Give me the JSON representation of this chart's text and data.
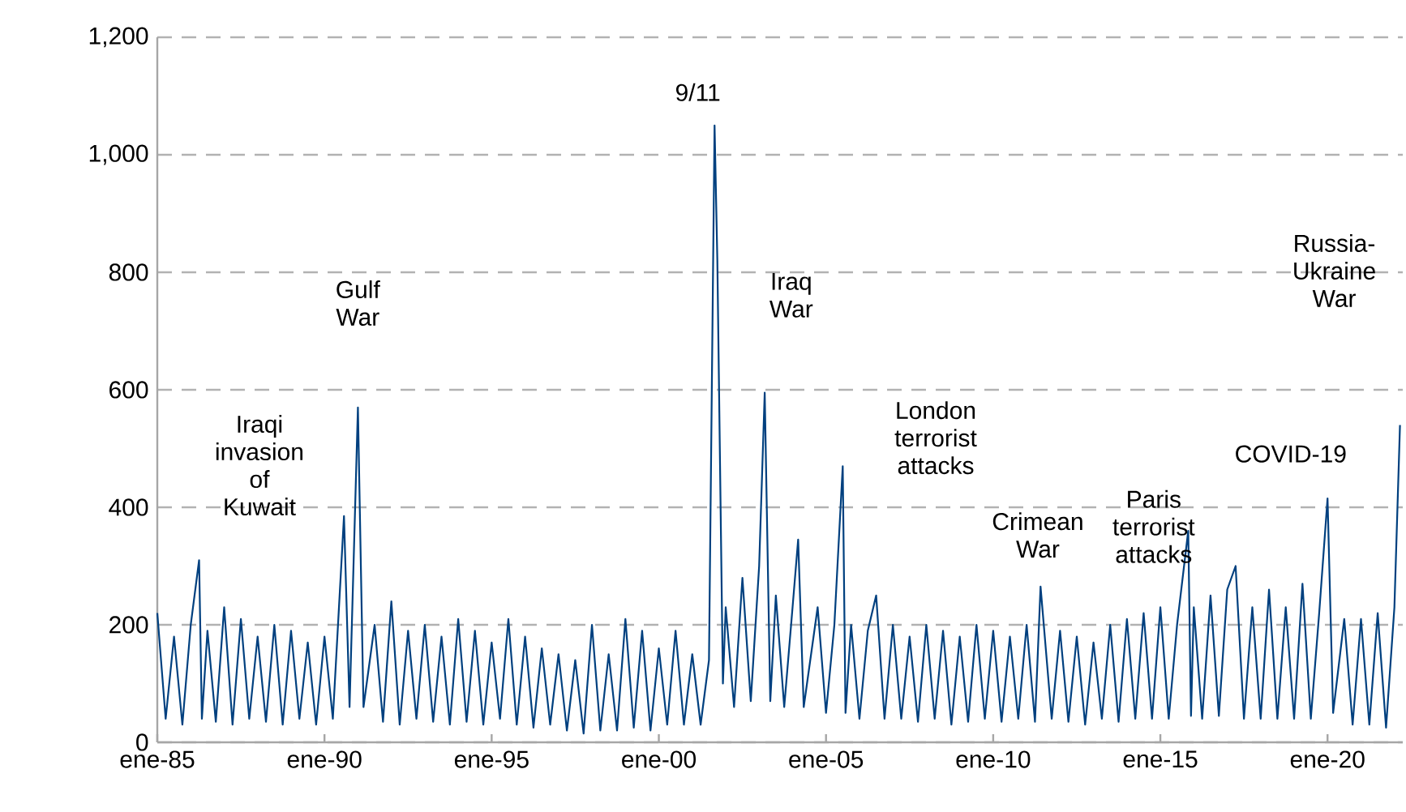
{
  "chart_data": {
    "type": "line",
    "color": "#00407f",
    "grid": "y",
    "line_style": "solid",
    "marker": "none",
    "xlim": [
      "1985-01",
      "2022-04"
    ],
    "xticks": [
      {
        "value": "1985-01",
        "label": "ene-85"
      },
      {
        "value": "1990-01",
        "label": "ene-90"
      },
      {
        "value": "1995-01",
        "label": "ene-95"
      },
      {
        "value": "2000-01",
        "label": "ene-00"
      },
      {
        "value": "2005-01",
        "label": "ene-05"
      },
      {
        "value": "2010-01",
        "label": "ene-10"
      },
      {
        "value": "2015-01",
        "label": "ene-15"
      },
      {
        "value": "2020-01",
        "label": "ene-20"
      }
    ],
    "ylim": [
      0,
      1200
    ],
    "yticks": [
      0,
      200,
      400,
      600,
      800,
      {
        "value": 1000,
        "label": "1,000"
      },
      {
        "value": 1200,
        "label": "1,200"
      }
    ],
    "x": [
      "1985-01",
      "1985-04",
      "1985-07",
      "1985-10",
      "1986-01",
      "1986-04",
      "1986-05",
      "1986-07",
      "1986-10",
      "1987-01",
      "1987-04",
      "1987-07",
      "1987-10",
      "1988-01",
      "1988-04",
      "1988-07",
      "1988-10",
      "1989-01",
      "1989-04",
      "1989-07",
      "1989-10",
      "1990-01",
      "1990-04",
      "1990-08",
      "1990-10",
      "1991-01",
      "1991-03",
      "1991-07",
      "1991-10",
      "1992-01",
      "1992-04",
      "1992-07",
      "1992-10",
      "1993-01",
      "1993-04",
      "1993-07",
      "1993-10",
      "1994-01",
      "1994-04",
      "1994-07",
      "1994-10",
      "1995-01",
      "1995-04",
      "1995-07",
      "1995-10",
      "1996-01",
      "1996-04",
      "1996-07",
      "1996-10",
      "1997-01",
      "1997-04",
      "1997-07",
      "1997-10",
      "1998-01",
      "1998-04",
      "1998-07",
      "1998-10",
      "1999-01",
      "1999-04",
      "1999-07",
      "1999-10",
      "2000-01",
      "2000-04",
      "2000-07",
      "2000-10",
      "2001-01",
      "2001-04",
      "2001-07",
      "2001-09",
      "2001-10",
      "2001-12",
      "2002-01",
      "2002-04",
      "2002-07",
      "2002-10",
      "2003-01",
      "2003-03",
      "2003-05",
      "2003-07",
      "2003-10",
      "2004-01",
      "2004-03",
      "2004-05",
      "2004-10",
      "2005-01",
      "2005-04",
      "2005-07",
      "2005-08",
      "2005-10",
      "2006-01",
      "2006-04",
      "2006-07",
      "2006-10",
      "2007-01",
      "2007-04",
      "2007-07",
      "2007-10",
      "2008-01",
      "2008-04",
      "2008-07",
      "2008-10",
      "2009-01",
      "2009-04",
      "2009-07",
      "2009-10",
      "2010-01",
      "2010-04",
      "2010-07",
      "2010-10",
      "2011-01",
      "2011-04",
      "2011-06",
      "2011-10",
      "2012-01",
      "2012-04",
      "2012-07",
      "2012-10",
      "2013-01",
      "2013-04",
      "2013-07",
      "2013-10",
      "2014-01",
      "2014-04",
      "2014-07",
      "2014-10",
      "2015-01",
      "2015-04",
      "2015-07",
      "2015-11",
      "2015-12",
      "2016-01",
      "2016-04",
      "2016-07",
      "2016-10",
      "2017-01",
      "2017-04",
      "2017-07",
      "2017-10",
      "2018-01",
      "2018-04",
      "2018-07",
      "2018-10",
      "2019-01",
      "2019-04",
      "2019-07",
      "2019-10",
      "2020-01",
      "2020-03",
      "2020-07",
      "2020-10",
      "2021-01",
      "2021-04",
      "2021-07",
      "2021-10",
      "2022-01",
      "2022-03"
    ],
    "values": [
      220,
      40,
      180,
      30,
      200,
      310,
      40,
      190,
      35,
      230,
      30,
      210,
      40,
      180,
      35,
      200,
      30,
      190,
      40,
      170,
      30,
      180,
      40,
      385,
      60,
      570,
      60,
      200,
      35,
      240,
      30,
      190,
      40,
      200,
      35,
      180,
      30,
      210,
      35,
      190,
      30,
      170,
      40,
      210,
      30,
      180,
      25,
      160,
      30,
      150,
      20,
      140,
      15,
      200,
      20,
      150,
      20,
      210,
      25,
      190,
      20,
      160,
      30,
      190,
      30,
      150,
      30,
      140,
      1050,
      820,
      100,
      230,
      60,
      280,
      70,
      300,
      595,
      70,
      250,
      60,
      230,
      345,
      60,
      230,
      50,
      200,
      470,
      50,
      200,
      40,
      190,
      250,
      40,
      200,
      40,
      180,
      35,
      200,
      40,
      190,
      30,
      180,
      35,
      200,
      40,
      190,
      35,
      180,
      40,
      200,
      35,
      265,
      40,
      190,
      35,
      180,
      30,
      170,
      40,
      200,
      35,
      210,
      40,
      220,
      40,
      230,
      40,
      200,
      360,
      45,
      230,
      40,
      250,
      45,
      260,
      300,
      40,
      230,
      40,
      260,
      40,
      230,
      40,
      270,
      40,
      220,
      415,
      50,
      210,
      30,
      210,
      30,
      220,
      25,
      230,
      540
    ],
    "annotations": [
      "9/11",
      "Gulf War",
      "Iraqi invasion of Kuwait",
      "Iraq War",
      "London terrorist attacks",
      "Crimean War",
      "Paris terrorist attacks",
      "COVID-19",
      "Russia-Ukraine War"
    ]
  }
}
